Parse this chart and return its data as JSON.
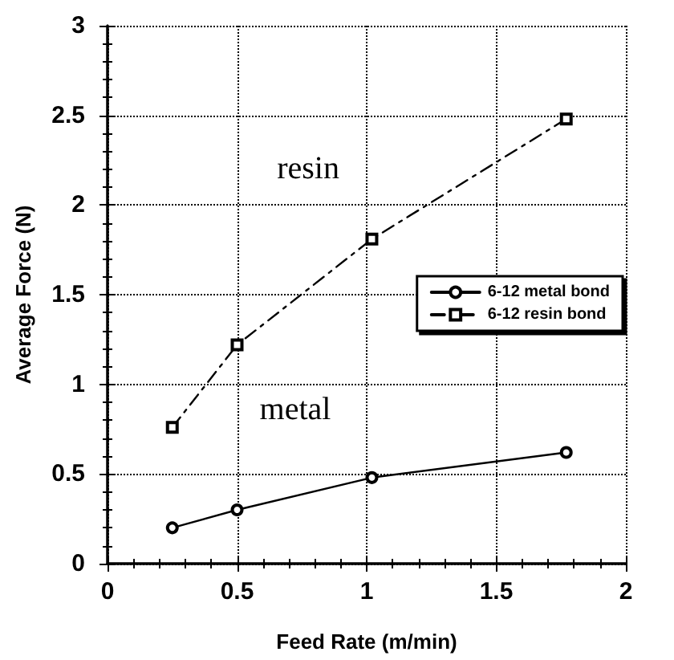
{
  "chart_data": {
    "type": "line",
    "xlabel": "Feed Rate (m/min)",
    "ylabel": "Average Force (N)",
    "xlim": [
      0,
      2
    ],
    "xticks": [
      0,
      0.5,
      1,
      1.5,
      2
    ],
    "ylim": [
      0,
      3
    ],
    "yticks": [
      0,
      0.5,
      1,
      1.5,
      2,
      2.5,
      3
    ],
    "grid": true,
    "legend": "right",
    "series": [
      {
        "name": "6-12 metal bond",
        "color": "#000000",
        "marker": "circle",
        "line_style": "solid",
        "x": [
          0.25,
          0.5,
          1.02,
          1.77
        ],
        "values": [
          0.2,
          0.3,
          0.48,
          0.62
        ]
      },
      {
        "name": "6-12 resin bond",
        "color": "#000000",
        "marker": "square",
        "line_style": "dashed",
        "x": [
          0.25,
          0.5,
          1.02,
          1.77
        ],
        "values": [
          0.76,
          1.22,
          1.81,
          2.48
        ]
      }
    ],
    "annotations": [
      "resin",
      "metal"
    ]
  }
}
